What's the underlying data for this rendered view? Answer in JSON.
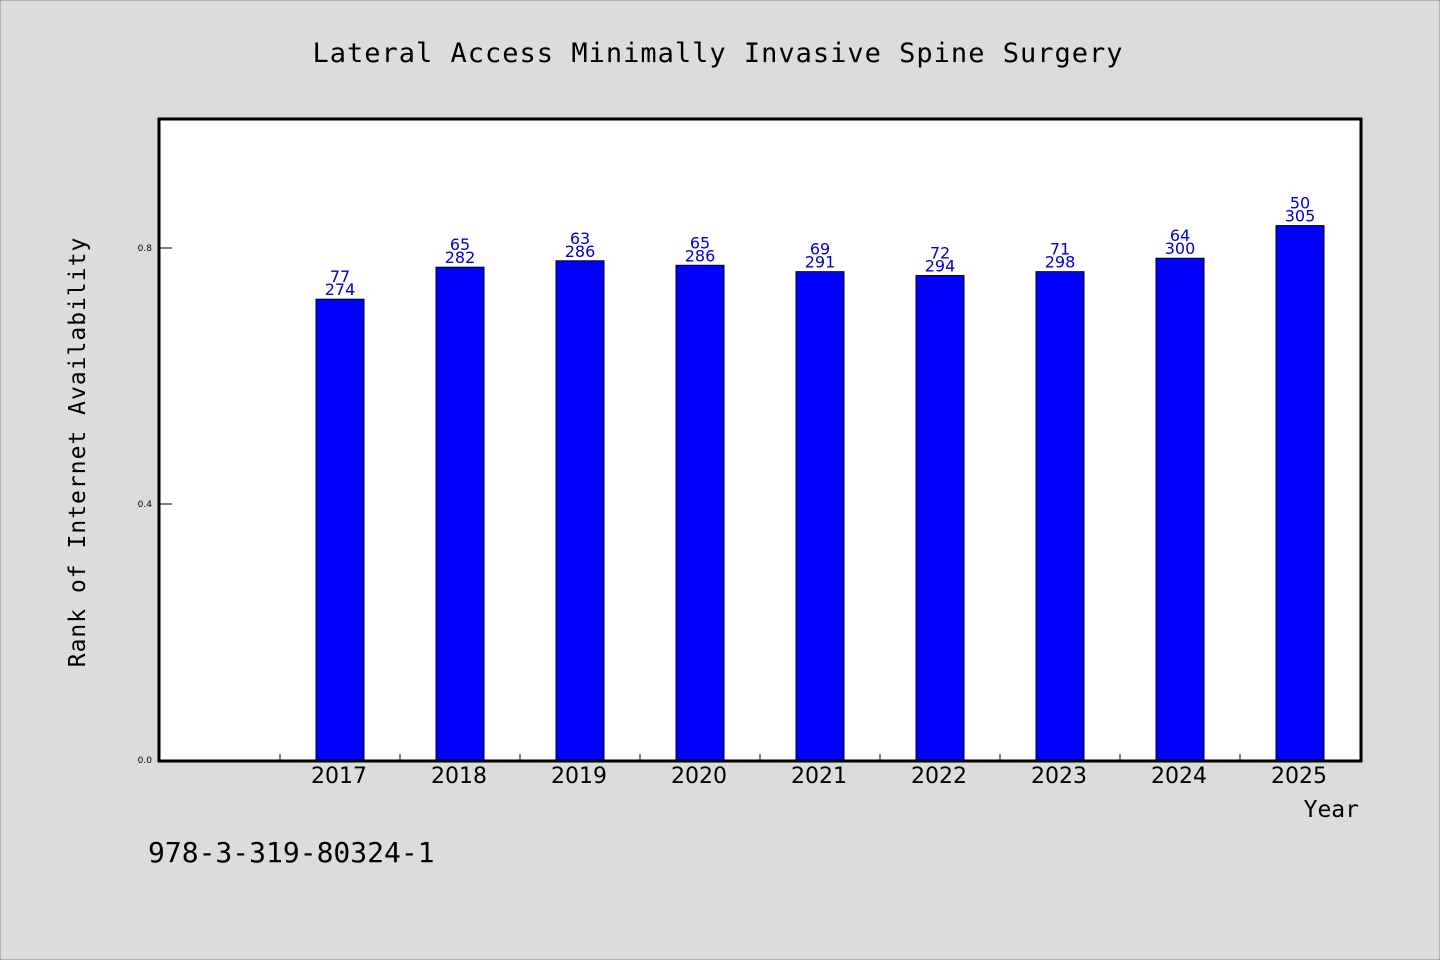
{
  "colors": {
    "background": "#dcdcdc",
    "plot_background": "#ffffff",
    "bar": "#0000ff",
    "label": "#0000cc",
    "axis": "#000000"
  },
  "isbn": "978-3-319-80324-1",
  "chart_data": {
    "type": "bar",
    "title": "Lateral Access Minimally Invasive Spine Surgery",
    "xlabel": "Year",
    "ylabel": "Rank of Internet Availability",
    "ylim": [
      0,
      1.0
    ],
    "yticks": [
      0.0,
      0.4,
      0.8
    ],
    "ytick_labels": [
      "0.0",
      "0.4",
      "0.8"
    ],
    "categories": [
      "2017",
      "2018",
      "2019",
      "2020",
      "2021",
      "2022",
      "2023",
      "2024",
      "2025"
    ],
    "values": [
      0.72,
      0.77,
      0.78,
      0.773,
      0.763,
      0.757,
      0.763,
      0.784,
      0.835
    ],
    "data_labels_top": [
      "77",
      "65",
      "63",
      "65",
      "69",
      "72",
      "71",
      "64",
      "50"
    ],
    "data_labels_bottom": [
      "274",
      "282",
      "286",
      "286",
      "291",
      "294",
      "298",
      "300",
      "305"
    ],
    "grid": false,
    "legend": "none"
  }
}
